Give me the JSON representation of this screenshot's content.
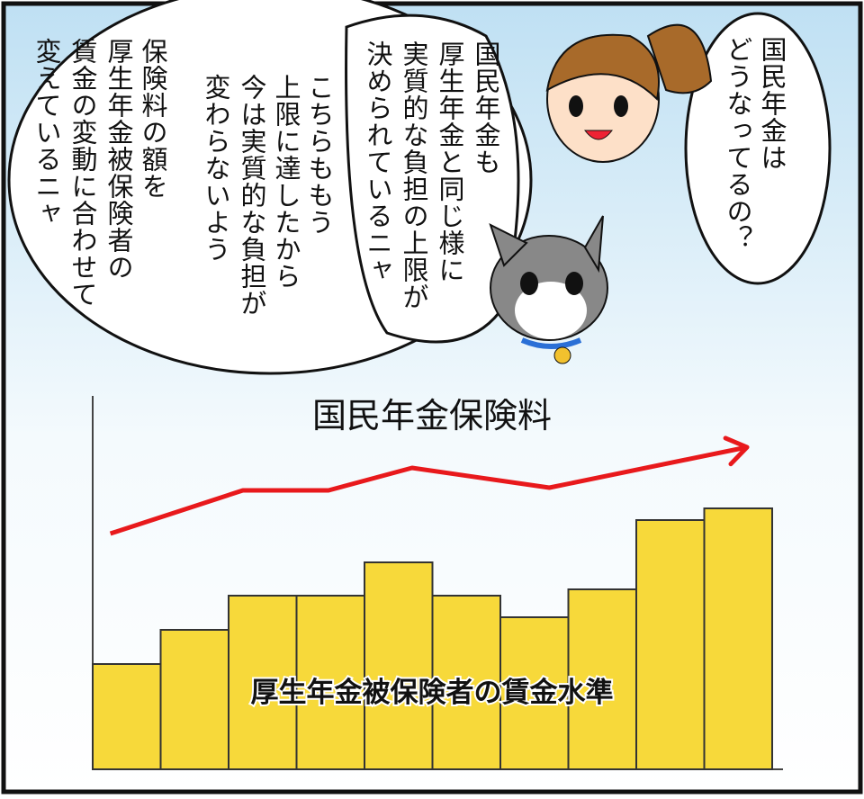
{
  "bubbles": [
    {
      "lines": [
        "国民年金は",
        "どうなってるの？"
      ]
    },
    {
      "lines": [
        "国民年金も",
        "厚生年金と同じ様に",
        "実質的な負担の上限が",
        "決められているニャ"
      ]
    },
    {
      "lines": [
        "こちらももう",
        "上限に達したから",
        "今は実質的な負担が",
        "変わらないよう"
      ]
    },
    {
      "lines": [
        "保険料の額を",
        "厚生年金被保険者の",
        "賃金の変動に合わせて",
        "変えているニャ"
      ]
    }
  ],
  "chart_data": {
    "type": "bar",
    "categories": [
      null,
      null,
      null,
      null,
      null,
      null,
      null,
      null,
      null,
      null
    ],
    "xlim": [
      -0.5,
      9.5
    ],
    "ylim": [
      0,
      400
    ],
    "series": [
      {
        "name": "厚生年金被保険者の賃金水準",
        "type": "bar",
        "color": "#f7d93a",
        "values": [
          117,
          155,
          193,
          193,
          230,
          193,
          169,
          200,
          277,
          290
        ]
      },
      {
        "name": "国民年金保険料",
        "type": "line",
        "color": "#e8191c",
        "x": [
          -0.24,
          1.71,
          2.97,
          4.2,
          6.22,
          9.13
        ],
        "values": [
          262,
          310,
          310,
          335,
          313,
          358
        ]
      }
    ]
  }
}
